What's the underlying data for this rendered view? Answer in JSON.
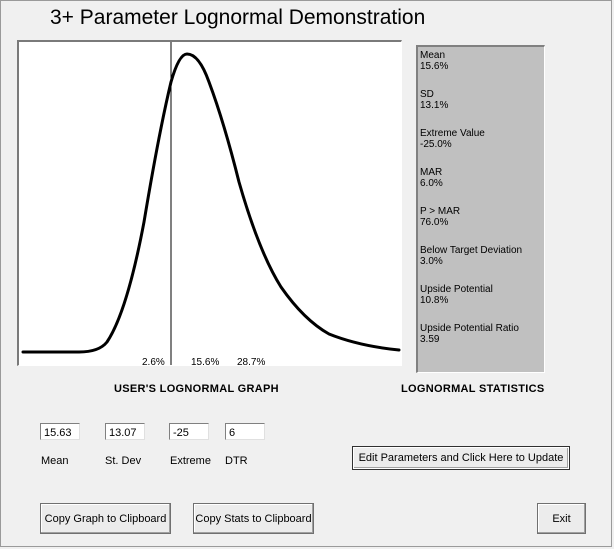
{
  "window": {
    "title": "3+ Parameter Lognormal Demonstration"
  },
  "graph": {
    "caption": "USER'S LOGNORMAL GRAPH",
    "tick_labels": [
      "2.6%",
      "15.6%",
      "28.7%"
    ]
  },
  "stats": {
    "caption": "LOGNORMAL STATISTICS",
    "items": [
      {
        "label": "Mean",
        "value": "15.6%"
      },
      {
        "label": "SD",
        "value": "13.1%"
      },
      {
        "label": "Extreme Value",
        "value": "-25.0%"
      },
      {
        "label": "MAR",
        "value": "6.0%"
      },
      {
        "label": "P > MAR",
        "value": "76.0%"
      },
      {
        "label": "Below Target Deviation",
        "value": "3.0%"
      },
      {
        "label": "Upside Potential",
        "value": "10.8%"
      },
      {
        "label": "Upside Potential Ratio",
        "value": "3.59"
      }
    ]
  },
  "inputs": {
    "mean": {
      "value": "15.63",
      "label": "Mean"
    },
    "stdev": {
      "value": "13.07",
      "label": "St. Dev"
    },
    "extreme": {
      "value": "-25",
      "label": "Extreme"
    },
    "dtr": {
      "value": "6",
      "label": "DTR"
    }
  },
  "buttons": {
    "update": "Edit Parameters and Click Here to Update",
    "copy_graph": "Copy Graph to Clipboard",
    "copy_stats": "Copy Stats to Clipboard",
    "exit": "Exit"
  }
}
